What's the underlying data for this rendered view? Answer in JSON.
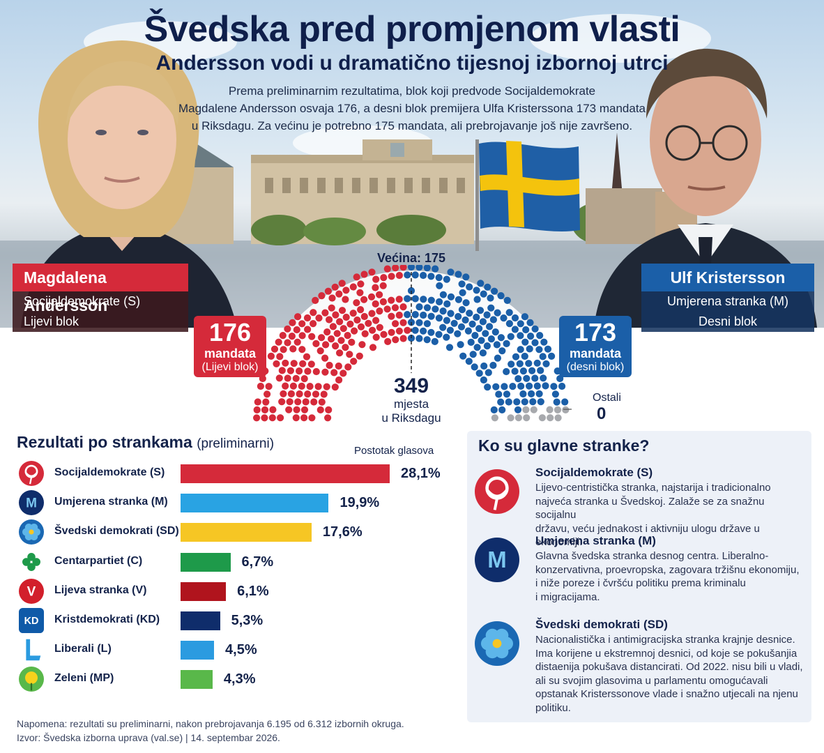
{
  "header": {
    "title": "Švedska pred promjenom vlasti",
    "subtitle": "Andersson vodi u dramatično tijesnoj izbornoj utrci",
    "intro_line1": "Prema preliminarnim rezultatima, blok koji predvode Socijaldemokrate",
    "intro_line2": "Magdalene Andersson osvaja 176, a desni blok premijera Ulfa Kristerssona 173 mandata",
    "intro_line3": "u Riksdagu. Za većinu je potrebno 175 mandata, ali prebrojavanje još nije završeno."
  },
  "candidates": {
    "left": {
      "name": "Magdalena Andersson",
      "party": "Socijaldemokrate (S)",
      "bloc": "Lijevi blok"
    },
    "right": {
      "name": "Ulf Kristersson",
      "party": "Umjerena stranka (M)",
      "bloc": "Desni blok"
    }
  },
  "parliament": {
    "majority_label": "Većina: 175",
    "left_seats": "176",
    "left_unit": "mandata",
    "left_bloc": "(Lijevi blok)",
    "right_seats": "173",
    "right_unit": "mandata",
    "right_bloc": "(desni blok)",
    "total": "349",
    "total_line1": "mjesta",
    "total_line2": "u Riksdagu",
    "other_label": "Ostali",
    "other_value": "0",
    "colors": {
      "left": "#d52a3a",
      "right": "#1b5fa8",
      "other": "#a7a9ad"
    }
  },
  "results": {
    "title": "Rezultati po strankama",
    "title_note": "(preliminarni)",
    "pct_header": "Postotak glasova",
    "parties": [
      {
        "icon": "rose-icon",
        "name": "Socijaldemokrate (S)",
        "value": 28.1,
        "label": "28,1%",
        "color": "#d52a3a"
      },
      {
        "icon": "moderates-m-icon",
        "name": "Umjerena stranka (M)",
        "value": 19.9,
        "label": "19,9%",
        "color": "#29a3e3"
      },
      {
        "icon": "flower-icon",
        "name": "Švedski demokrati (SD)",
        "value": 17.6,
        "label": "17,6%",
        "color": "#f6c624"
      },
      {
        "icon": "clover-icon",
        "name": "Centarpartiet (C)",
        "value": 6.7,
        "label": "6,7%",
        "color": "#1e9a4a"
      },
      {
        "icon": "v-icon",
        "name": "Lijeva stranka (V)",
        "value": 6.1,
        "label": "6,1%",
        "color": "#b0141d"
      },
      {
        "icon": "kd-icon",
        "name": "Kristdemokrati (KD)",
        "value": 5.3,
        "label": "5,3%",
        "color": "#0f2d6b"
      },
      {
        "icon": "liberal-l-icon",
        "name": "Liberali (L)",
        "value": 4.5,
        "label": "4,5%",
        "color": "#2b9be0"
      },
      {
        "icon": "sunflower-icon",
        "name": "Zeleni (MP)",
        "value": 4.3,
        "label": "4,3%",
        "color": "#59b84a"
      }
    ]
  },
  "main_parties": {
    "title": "Ko su glavne stranke?",
    "items": [
      {
        "icon": "rose-icon",
        "name": "Socijaldemokrate (S)",
        "lines": [
          "Lijevo-centristička stranka, najstarija i tradicionalno",
          "najveća stranka u Švedskoj. Zalaže se za snažnu socijalnu",
          "državu, veću jednakost i aktivniju ulogu države u ekonomiji."
        ]
      },
      {
        "icon": "moderates-m-icon",
        "name": "Umjerena stranka (M)",
        "lines": [
          "Glavna švedska stranka desnog centra. Liberalno-",
          "konzervativna, proevropska, zagovara tržišnu ekonomiju,",
          "i niže poreze i čvršću politiku prema kriminalu",
          "i migracijama."
        ]
      },
      {
        "icon": "flower-icon",
        "name": "Švedski demokrati (SD)",
        "lines": [
          "Nacionalistička i antimigracijska stranka krajnje desnice.",
          "Ima korijene u ekstremnoj desnici, od koje se pokušanjia",
          "distaenija pokušava distancirati. Od 2022. nisu bili u vladi,",
          "ali su svojim glasovima u parlamentu omogućavali",
          "opstanak Kristerssonove vlade i snažno utjecali na njenu",
          "politiku."
        ]
      }
    ]
  },
  "footer": {
    "note": "Napomena: rezultati su preliminarni, nakon prebrojavanja 6.195 od 6.312 izbornih okruga.",
    "source": "Izvor: Švedska izborna uprava (val.se) | 14. septembar 2026."
  }
}
